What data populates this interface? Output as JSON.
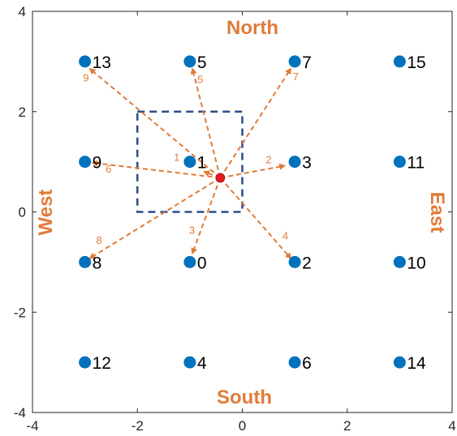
{
  "chart_data": {
    "type": "scatter",
    "xlim": [
      -4,
      4
    ],
    "ylim": [
      -4,
      4
    ],
    "x_ticks": [
      -4,
      -2,
      0,
      2,
      4
    ],
    "y_ticks": [
      -4,
      -2,
      0,
      2,
      4
    ],
    "grid": false,
    "directions": {
      "north": "North",
      "south": "South",
      "west": "West",
      "east": "East"
    },
    "nodes": [
      {
        "label": "0",
        "x": -1,
        "y": -1
      },
      {
        "label": "1",
        "x": -1,
        "y": 1
      },
      {
        "label": "2",
        "x": 1,
        "y": -1
      },
      {
        "label": "3",
        "x": 1,
        "y": 1
      },
      {
        "label": "4",
        "x": -1,
        "y": -3
      },
      {
        "label": "5",
        "x": -1,
        "y": 3
      },
      {
        "label": "6",
        "x": 1,
        "y": -3
      },
      {
        "label": "7",
        "x": 1,
        "y": 3
      },
      {
        "label": "8",
        "x": -3,
        "y": -1
      },
      {
        "label": "9",
        "x": -3,
        "y": 1
      },
      {
        "label": "10",
        "x": 3,
        "y": -1
      },
      {
        "label": "11",
        "x": 3,
        "y": 1
      },
      {
        "label": "12",
        "x": -3,
        "y": -3
      },
      {
        "label": "13",
        "x": -3,
        "y": 3
      },
      {
        "label": "14",
        "x": 3,
        "y": -3
      },
      {
        "label": "15",
        "x": 3,
        "y": 3
      }
    ],
    "source": {
      "x": -0.42,
      "y": 0.68
    },
    "box": {
      "x0": -2,
      "y0": 0,
      "x1": 0,
      "y1": 2
    },
    "arrows": [
      {
        "label": "1",
        "to_x": -0.72,
        "to_y": 0.8,
        "label_x": -1.25,
        "label_y": 1.02
      },
      {
        "label": "2",
        "to_x": 0.8,
        "to_y": 0.92,
        "label_x": 0.5,
        "label_y": 0.97
      },
      {
        "label": "3",
        "to_x": -0.95,
        "to_y": -0.82,
        "label_x": -0.96,
        "label_y": -0.44
      },
      {
        "label": "4",
        "to_x": 0.92,
        "to_y": -0.92,
        "label_x": 0.82,
        "label_y": -0.55
      },
      {
        "label": "5",
        "to_x": -0.95,
        "to_y": 2.85,
        "label_x": -0.8,
        "label_y": 2.57
      },
      {
        "label": "6",
        "to_x": -2.85,
        "to_y": 0.98,
        "label_x": -2.55,
        "label_y": 0.78
      },
      {
        "label": "7",
        "to_x": 0.92,
        "to_y": 2.85,
        "label_x": 1.02,
        "label_y": 2.63
      },
      {
        "label": "8",
        "to_x": -2.9,
        "to_y": -0.92,
        "label_x": -2.73,
        "label_y": -0.64
      },
      {
        "label": "9",
        "to_x": -2.9,
        "to_y": 2.85,
        "label_x": -2.98,
        "label_y": 2.6
      }
    ],
    "colors": {
      "node": "#0072BD",
      "source": "#E31A1C",
      "arrow": "#E07B39",
      "box": "#2B4C8A",
      "direction_text": "#E07B39",
      "axis": "#262626"
    }
  }
}
